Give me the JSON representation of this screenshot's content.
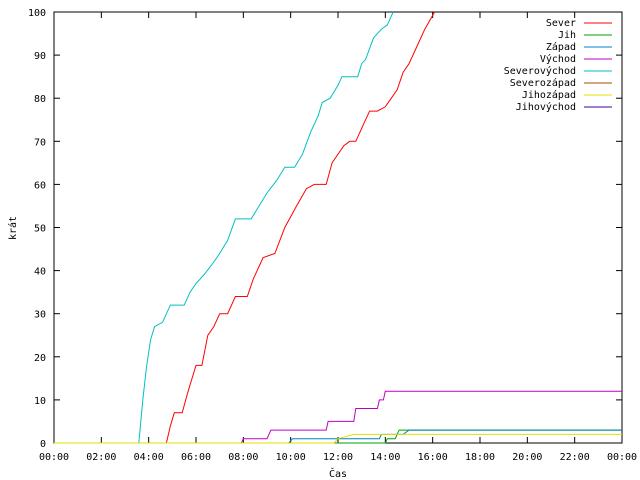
{
  "chart_data": {
    "type": "line",
    "title": "",
    "xlabel": "Čas",
    "ylabel": "krát",
    "xlim": [
      "00:00",
      "24:00"
    ],
    "ylim": [
      0,
      100
    ],
    "x_ticks": [
      "00:00",
      "02:00",
      "04:00",
      "06:00",
      "08:00",
      "10:00",
      "12:00",
      "14:00",
      "16:00",
      "18:00",
      "20:00",
      "22:00",
      "00:00"
    ],
    "y_ticks": [
      "0",
      "10",
      "20",
      "30",
      "40",
      "50",
      "60",
      "70",
      "80",
      "90",
      "100"
    ],
    "grid": false,
    "legend_position": "top-right",
    "series": [
      {
        "name": "Sever",
        "color": "#ff0000",
        "points": [
          [
            "00:00",
            0
          ],
          [
            "04:45",
            0
          ],
          [
            "04:55",
            4
          ],
          [
            "05:05",
            7
          ],
          [
            "05:25",
            7
          ],
          [
            "05:40",
            12
          ],
          [
            "06:00",
            18
          ],
          [
            "06:15",
            18
          ],
          [
            "06:30",
            25
          ],
          [
            "06:45",
            27
          ],
          [
            "07:00",
            30
          ],
          [
            "07:20",
            30
          ],
          [
            "07:40",
            34
          ],
          [
            "08:10",
            34
          ],
          [
            "08:25",
            38
          ],
          [
            "08:50",
            43
          ],
          [
            "09:20",
            44
          ],
          [
            "09:45",
            50
          ],
          [
            "10:15",
            55
          ],
          [
            "10:40",
            59
          ],
          [
            "11:00",
            60
          ],
          [
            "11:30",
            60
          ],
          [
            "11:45",
            65
          ],
          [
            "12:15",
            69
          ],
          [
            "12:30",
            70
          ],
          [
            "12:45",
            70
          ],
          [
            "13:05",
            74
          ],
          [
            "13:20",
            77
          ],
          [
            "13:40",
            77
          ],
          [
            "14:00",
            78
          ],
          [
            "14:15",
            80
          ],
          [
            "14:30",
            82
          ],
          [
            "14:45",
            86
          ],
          [
            "15:00",
            88
          ],
          [
            "15:20",
            92
          ],
          [
            "15:40",
            96
          ],
          [
            "16:05",
            100
          ]
        ]
      },
      {
        "name": "Jih",
        "color": "#00a000",
        "points": [
          [
            "00:00",
            0
          ],
          [
            "14:00",
            0
          ],
          [
            "14:05",
            1
          ],
          [
            "14:25",
            1
          ],
          [
            "14:35",
            3
          ],
          [
            "24:00",
            3
          ]
        ]
      },
      {
        "name": "Západ",
        "color": "#0080c0",
        "points": [
          [
            "00:00",
            0
          ],
          [
            "09:55",
            0
          ],
          [
            "10:05",
            1
          ],
          [
            "13:45",
            1
          ],
          [
            "13:50",
            2
          ],
          [
            "14:45",
            2
          ],
          [
            "15:00",
            3
          ],
          [
            "24:00",
            3
          ]
        ]
      },
      {
        "name": "Východ",
        "color": "#c000c0",
        "points": [
          [
            "00:00",
            0
          ],
          [
            "07:55",
            0
          ],
          [
            "08:00",
            1
          ],
          [
            "09:00",
            1
          ],
          [
            "09:10",
            3
          ],
          [
            "11:30",
            3
          ],
          [
            "11:35",
            5
          ],
          [
            "12:40",
            5
          ],
          [
            "12:45",
            8
          ],
          [
            "13:40",
            8
          ],
          [
            "13:45",
            10
          ],
          [
            "13:55",
            10
          ],
          [
            "14:00",
            12
          ],
          [
            "24:00",
            12
          ]
        ]
      },
      {
        "name": "Severovýchod",
        "color": "#00c0c0",
        "points": [
          [
            "00:00",
            0
          ],
          [
            "03:35",
            0
          ],
          [
            "03:45",
            10
          ],
          [
            "03:55",
            18
          ],
          [
            "04:05",
            24
          ],
          [
            "04:15",
            27
          ],
          [
            "04:35",
            28
          ],
          [
            "04:55",
            32
          ],
          [
            "05:30",
            32
          ],
          [
            "05:45",
            35
          ],
          [
            "06:00",
            37
          ],
          [
            "06:20",
            39
          ],
          [
            "06:45",
            42
          ],
          [
            "07:00",
            44
          ],
          [
            "07:20",
            47
          ],
          [
            "07:40",
            52
          ],
          [
            "08:20",
            52
          ],
          [
            "08:40",
            55
          ],
          [
            "09:00",
            58
          ],
          [
            "09:25",
            61
          ],
          [
            "09:45",
            64
          ],
          [
            "10:10",
            64
          ],
          [
            "10:30",
            67
          ],
          [
            "10:50",
            72
          ],
          [
            "11:10",
            76
          ],
          [
            "11:20",
            79
          ],
          [
            "11:40",
            80
          ],
          [
            "12:00",
            83
          ],
          [
            "12:10",
            85
          ],
          [
            "12:50",
            85
          ],
          [
            "13:00",
            88
          ],
          [
            "13:10",
            89
          ],
          [
            "13:30",
            94
          ],
          [
            "13:50",
            96
          ],
          [
            "14:05",
            97
          ],
          [
            "14:20",
            100
          ]
        ]
      },
      {
        "name": "Severozápad",
        "color": "#a05000",
        "points": []
      },
      {
        "name": "Jihozápad",
        "color": "#e0e000",
        "points": [
          [
            "00:00",
            0
          ],
          [
            "11:50",
            0
          ],
          [
            "12:00",
            1
          ],
          [
            "12:40",
            2
          ],
          [
            "24:00",
            2
          ]
        ]
      },
      {
        "name": "Jihovýchod",
        "color": "#4000a0",
        "points": []
      }
    ]
  }
}
